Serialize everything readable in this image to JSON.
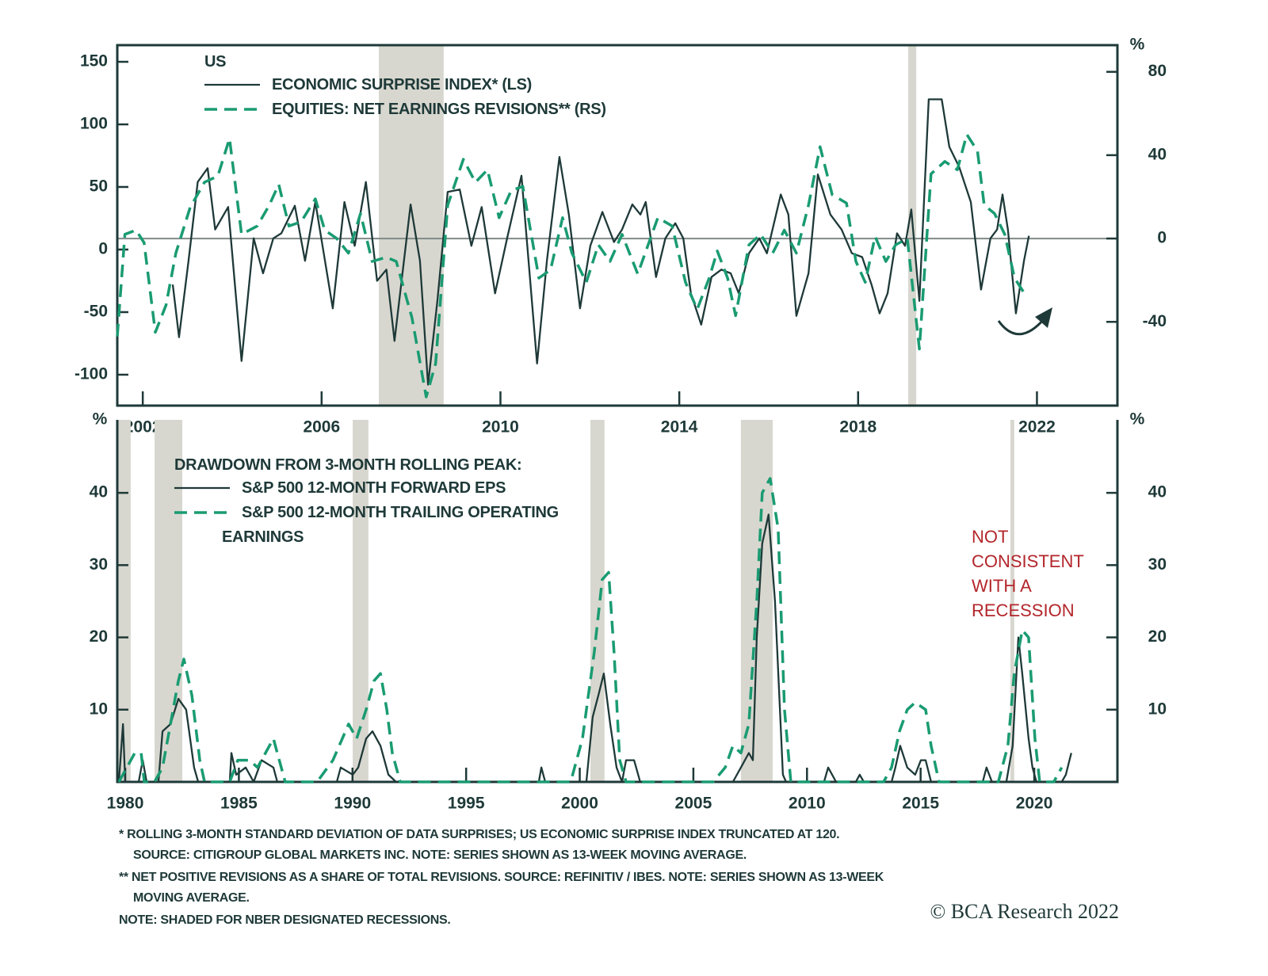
{
  "chart_data": [
    {
      "type": "line",
      "legend_title": "US",
      "y2_label": "%",
      "xlim": [
        2001.43,
        2023.8
      ],
      "xticks": [
        2002,
        2006,
        2010,
        2014,
        2018,
        2022
      ],
      "ylim": [
        -124.7,
        163.3
      ],
      "yticks": [
        -100,
        -50,
        0,
        50,
        100,
        150
      ],
      "y2lim": [
        -80.2,
        92.8
      ],
      "y2ticks": [
        -40,
        0,
        40,
        80
      ],
      "reference_line": {
        "axis": "y2",
        "value": 0
      },
      "shading": [
        [
          2007.28,
          2008.73
        ],
        [
          2019.12,
          2019.3
        ]
      ],
      "shading_color": "#d8d7cf",
      "series": [
        {
          "name": "ECONOMIC SURPRISE INDEX* (LS)",
          "color": "#1e3938",
          "style": "solid",
          "axis": "y",
          "x": [
            2002.67,
            2002.81,
            2003.02,
            2003.23,
            2003.45,
            2003.62,
            2003.91,
            2004.21,
            2004.48,
            2004.69,
            2004.92,
            2005.1,
            2005.4,
            2005.63,
            2005.86,
            2006.25,
            2006.51,
            2006.74,
            2006.99,
            2007.24,
            2007.45,
            2007.63,
            2007.99,
            2008.2,
            2008.38,
            2008.59,
            2008.82,
            2009.09,
            2009.35,
            2009.58,
            2009.88,
            2010.15,
            2010.47,
            2010.82,
            2011.04,
            2011.32,
            2011.53,
            2011.78,
            2012.01,
            2012.28,
            2012.54,
            2012.72,
            2012.95,
            2013.13,
            2013.25,
            2013.48,
            2013.69,
            2013.91,
            2014.09,
            2014.26,
            2014.49,
            2014.72,
            2014.94,
            2015.15,
            2015.33,
            2015.56,
            2015.79,
            2015.96,
            2016.27,
            2016.44,
            2016.62,
            2016.89,
            2017.1,
            2017.38,
            2017.63,
            2017.86,
            2018.09,
            2018.3,
            2018.48,
            2018.66,
            2018.87,
            2019.05,
            2019.19,
            2019.37,
            2019.58,
            2019.87,
            2020.04,
            2020.26,
            2020.52,
            2020.75,
            2020.96,
            2021.11,
            2021.23,
            2021.35,
            2021.53,
            2021.71,
            2021.82
          ],
          "values": [
            -28,
            -70,
            -10,
            54,
            65,
            16,
            34,
            -89,
            9,
            -19,
            9,
            13,
            35,
            -9,
            38,
            -47,
            38,
            3,
            54,
            -25,
            -16,
            -73,
            36,
            -9,
            -108,
            -41,
            46,
            48,
            3,
            34,
            -35,
            9,
            59,
            -91,
            -9,
            74,
            28,
            -47,
            3,
            30,
            6,
            16,
            36,
            28,
            38,
            -22,
            9,
            21,
            9,
            -35,
            -60,
            -22,
            -16,
            -19,
            -35,
            -3,
            9,
            -3,
            44,
            28,
            -53,
            -19,
            60,
            28,
            16,
            -3,
            -6,
            -28,
            -51,
            -35,
            13,
            3,
            32,
            -41,
            120,
            120,
            82,
            66,
            38,
            -32,
            9,
            16,
            44,
            16,
            -51,
            -9,
            11
          ]
        },
        {
          "name": "EQUITIES: NET EARNINGS REVISIONS** (RS)",
          "color": "#1a9b72",
          "style": "dashed",
          "axis": "y2",
          "x": [
            2001.43,
            2001.6,
            2001.85,
            2002.03,
            2002.28,
            2002.52,
            2002.74,
            2003.06,
            2003.38,
            2003.68,
            2003.94,
            2004.21,
            2004.56,
            2004.83,
            2005.04,
            2005.27,
            2005.54,
            2005.86,
            2006.07,
            2006.34,
            2006.6,
            2006.87,
            2007.13,
            2007.45,
            2007.67,
            2008.02,
            2008.34,
            2008.55,
            2008.82,
            2009.17,
            2009.44,
            2009.71,
            2009.97,
            2010.24,
            2010.5,
            2010.86,
            2011.12,
            2011.39,
            2011.6,
            2011.92,
            2012.19,
            2012.45,
            2012.72,
            2013.07,
            2013.52,
            2013.84,
            2014.14,
            2014.4,
            2014.67,
            2014.85,
            2015.08,
            2015.26,
            2015.56,
            2015.82,
            2016.09,
            2016.35,
            2016.62,
            2016.89,
            2017.15,
            2017.42,
            2017.74,
            2017.95,
            2018.16,
            2018.38,
            2018.62,
            2018.84,
            2019.1,
            2019.37,
            2019.63,
            2019.94,
            2020.22,
            2020.43,
            2020.67,
            2020.82,
            2021.05,
            2021.28,
            2021.5,
            2021.71
          ],
          "values": [
            -47,
            2,
            4,
            -2,
            -45,
            -32,
            -7,
            15,
            27,
            30,
            48,
            2,
            6,
            16,
            26,
            6,
            8,
            19,
            4,
            0,
            -7,
            12,
            -11,
            -9,
            -11,
            -38,
            -76,
            -60,
            16,
            38,
            27,
            33,
            10,
            23,
            25,
            -19,
            -15,
            10,
            -7,
            -21,
            -3,
            -11,
            2,
            -17,
            10,
            6,
            -21,
            -34,
            -19,
            -6,
            -19,
            -37,
            -3,
            2,
            -7,
            4,
            -7,
            16,
            44,
            21,
            17,
            -11,
            -21,
            1,
            -11,
            -3,
            0,
            -53,
            31,
            37,
            33,
            50,
            42,
            16,
            12,
            2,
            -19,
            -26
          ]
        }
      ]
    },
    {
      "type": "line",
      "legend_title": "DRAWDOWN FROM 3-MONTH ROLLING PEAK:",
      "y_label": "%",
      "y2_label": "%",
      "xlim": [
        1979.65,
        2023.66
      ],
      "xticks": [
        1980,
        1985,
        1990,
        1995,
        2000,
        2005,
        2010,
        2015,
        2020
      ],
      "ylim": [
        0,
        50.1
      ],
      "yticks": [
        10,
        20,
        30,
        40
      ],
      "y2lim": [
        0,
        50.1
      ],
      "y2ticks": [
        10,
        20,
        30,
        40
      ],
      "shading": [
        [
          1979.65,
          1980.24
        ],
        [
          1981.29,
          1982.51
        ],
        [
          1990.01,
          1990.7
        ],
        [
          2000.47,
          2001.09
        ],
        [
          2007.09,
          2008.49
        ],
        [
          2018.95,
          2019.12
        ]
      ],
      "shading_color": "#d8d7cf",
      "annotation": "NOT CONSISTENT WITH A RECESSION",
      "annotation_color": "#b3262b",
      "series": [
        {
          "name": "S&P 500 12-MONTH FORWARD EPS",
          "color": "#1e3938",
          "style": "solid",
          "axis": "y",
          "x": [
            1979.72,
            1979.9,
            1980.0,
            1980.59,
            1980.77,
            1980.94,
            1981.46,
            1981.64,
            1981.99,
            1982.34,
            1982.68,
            1983.03,
            1983.21,
            1984.6,
            1984.67,
            1984.88,
            1985.3,
            1985.65,
            1986.0,
            1986.52,
            1986.69,
            1989.31,
            1989.48,
            1990.01,
            1990.25,
            1990.6,
            1990.88,
            1991.23,
            1991.58,
            1991.92,
            1998.2,
            1998.31,
            1998.48,
            2000.29,
            2000.57,
            2000.82,
            2001.06,
            2001.34,
            2001.62,
            2001.86,
            2002.04,
            2002.39,
            2002.66,
            2006.74,
            2007.09,
            2007.44,
            2007.62,
            2007.79,
            2008.03,
            2008.31,
            2008.59,
            2008.94,
            2009.08,
            2010.75,
            2010.93,
            2011.28,
            2012.15,
            2012.32,
            2012.5,
            2013.72,
            2013.89,
            2014.1,
            2014.41,
            2014.76,
            2015.01,
            2015.22,
            2015.46,
            2017.73,
            2017.9,
            2018.14,
            2018.77,
            2019.05,
            2019.3,
            2019.47,
            2019.75,
            2019.92,
            2020.1,
            2021.21,
            2021.39,
            2021.63
          ],
          "values": [
            0,
            8,
            0,
            0,
            3,
            0,
            0,
            7,
            8,
            11.5,
            10,
            2,
            0,
            0,
            4,
            1,
            2,
            0,
            3,
            2,
            0,
            0,
            2,
            1,
            2,
            6,
            7,
            5,
            1,
            0,
            0,
            2,
            0,
            0,
            9,
            12,
            15,
            8,
            2,
            0,
            3,
            3,
            0,
            0,
            2,
            4,
            3,
            20,
            33,
            37,
            25,
            1,
            0,
            0,
            2,
            0,
            0,
            1,
            0,
            0,
            2,
            5,
            2,
            1,
            3,
            3,
            0,
            0,
            2,
            0,
            0,
            5,
            20,
            15,
            6,
            2,
            0,
            0,
            1,
            4
          ]
        },
        {
          "name": "S&P 500 12-MONTH TRAILING OPERATING EARNINGS",
          "color": "#1a9b72",
          "style": "dashed",
          "axis": "y",
          "x": [
            1979.72,
            1980.07,
            1980.42,
            1980.7,
            1980.84,
            1981.29,
            1981.64,
            1981.99,
            1982.34,
            1982.58,
            1982.93,
            1983.28,
            1983.49,
            1984.6,
            1984.95,
            1985.47,
            1985.82,
            1986.17,
            1986.52,
            1986.69,
            1987.04,
            1988.44,
            1989.14,
            1989.83,
            1990.18,
            1990.6,
            1990.95,
            1991.23,
            1991.51,
            1991.75,
            1992.1,
            1999.6,
            2000.12,
            2000.64,
            2000.99,
            2001.27,
            2001.51,
            2001.76,
            2002.04,
            2005.87,
            2006.4,
            2006.74,
            2007.09,
            2007.44,
            2007.79,
            2008.03,
            2008.38,
            2008.73,
            2009.01,
            2009.29,
            2013.37,
            2013.72,
            2014.07,
            2014.41,
            2014.76,
            2015.22,
            2015.46,
            2015.81,
            2018.42,
            2018.84,
            2019.12,
            2019.47,
            2019.75,
            2020.03,
            2020.24,
            2020.86,
            2021.21
          ],
          "values": [
            0,
            2,
            4,
            4,
            0,
            0,
            2,
            8,
            14,
            17,
            12,
            3,
            0,
            0,
            3,
            3,
            2,
            4,
            6,
            4,
            0,
            0,
            3,
            8,
            6,
            10,
            14,
            15,
            10,
            4,
            0,
            0,
            6,
            18,
            28,
            29,
            18,
            3,
            0,
            0,
            2,
            5,
            4,
            8,
            25,
            40,
            42,
            35,
            10,
            0,
            0,
            2,
            7,
            10,
            11,
            10,
            5,
            0,
            0,
            5,
            15,
            21,
            20,
            6,
            0,
            0,
            2
          ]
        }
      ]
    }
  ],
  "notes": [
    "*  ROLLING 3-MONTH STANDARD DEVIATION OF DATA SURPRISES; US ECONOMIC SURPRISE INDEX TRUNCATED AT 120.",
    "SOURCE: CITIGROUP GLOBAL MARKETS INC. NOTE: SERIES SHOWN AS 13-WEEK MOVING AVERAGE.",
    "** NET POSITIVE REVISIONS AS A SHARE OF TOTAL REVISIONS. SOURCE: REFINITIV / IBES. NOTE: SERIES SHOWN AS 13-WEEK",
    "MOVING AVERAGE.",
    "NOTE: SHADED FOR NBER DESIGNATED RECESSIONS."
  ],
  "source": "© BCA Research 2022"
}
